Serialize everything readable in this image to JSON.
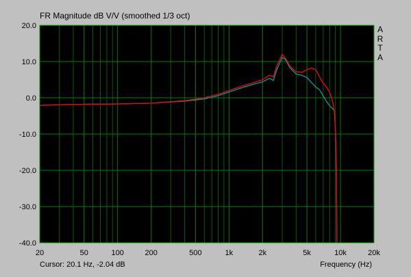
{
  "window": {
    "title": "FR Magnitude dB V/V (smoothed 1/3 oct)",
    "brand_letters": [
      "A",
      "R",
      "T",
      "A"
    ],
    "cursor_readout": "Cursor: 20.1 Hz, -2.04 dB",
    "background": "#c0c0c0"
  },
  "chart_data": {
    "type": "line",
    "title": "FR Magnitude dB V/V (smoothed 1/3 oct)",
    "xlabel": "Frequency (Hz)",
    "ylabel": "",
    "xscale": "log",
    "xlim": [
      20,
      20000
    ],
    "ylim": [
      -40,
      20
    ],
    "grid": true,
    "x_ticks": [
      20,
      50,
      100,
      200,
      500,
      1000,
      2000,
      5000,
      10000,
      20000
    ],
    "x_tick_labels": [
      "20",
      "50",
      "100",
      "200",
      "500",
      "1k",
      "2k",
      "5k",
      "10k",
      "20k"
    ],
    "y_ticks": [
      20,
      10,
      0,
      -10,
      -20,
      -30,
      -40
    ],
    "y_tick_labels": [
      "20.0",
      "10.0",
      "0.0",
      "-10.0",
      "-20.0",
      "-30.0",
      "-40.0"
    ],
    "colors": {
      "plot_bg": "#000000",
      "grid": "#008000",
      "series_1": "#ff0000",
      "series_2": "#00a0a0"
    },
    "series": [
      {
        "color": "#ff0000",
        "x": [
          20,
          30,
          50,
          100,
          200,
          400,
          600,
          800,
          1000,
          1300,
          1600,
          2000,
          2300,
          2500,
          2700,
          3000,
          3200,
          3500,
          4000,
          4500,
          5000,
          5500,
          6000,
          6500,
          7000,
          7500,
          8000,
          8500,
          8800,
          9000,
          9200,
          9300
        ],
        "y": [
          -2.1,
          -1.9,
          -1.8,
          -1.7,
          -1.5,
          -0.8,
          0.0,
          1.0,
          2.0,
          3.2,
          4.0,
          5.0,
          6.2,
          5.8,
          9.0,
          12.0,
          11.0,
          8.8,
          7.2,
          7.0,
          7.8,
          8.2,
          7.8,
          5.8,
          4.0,
          3.0,
          1.5,
          -1.0,
          -3.5,
          -8.0,
          -20.0,
          -40.0
        ]
      },
      {
        "color": "#00a0a0",
        "x": [
          20,
          30,
          50,
          100,
          200,
          400,
          600,
          800,
          1000,
          1300,
          1600,
          2000,
          2300,
          2500,
          2700,
          3000,
          3200,
          3500,
          4000,
          4500,
          5000,
          5500,
          6000,
          6500,
          7000,
          7500,
          8000,
          8500,
          8800,
          9000,
          9200,
          9300
        ],
        "y": [
          -2.1,
          -1.9,
          -1.8,
          -1.7,
          -1.5,
          -0.9,
          -0.3,
          0.6,
          1.6,
          2.8,
          3.6,
          4.4,
          5.4,
          4.8,
          8.0,
          11.2,
          10.6,
          8.4,
          6.6,
          6.2,
          5.6,
          4.2,
          3.0,
          2.2,
          0.5,
          -1.0,
          -2.2,
          -3.0,
          -3.5,
          -8.0,
          -20.0,
          -40.0
        ]
      }
    ]
  }
}
